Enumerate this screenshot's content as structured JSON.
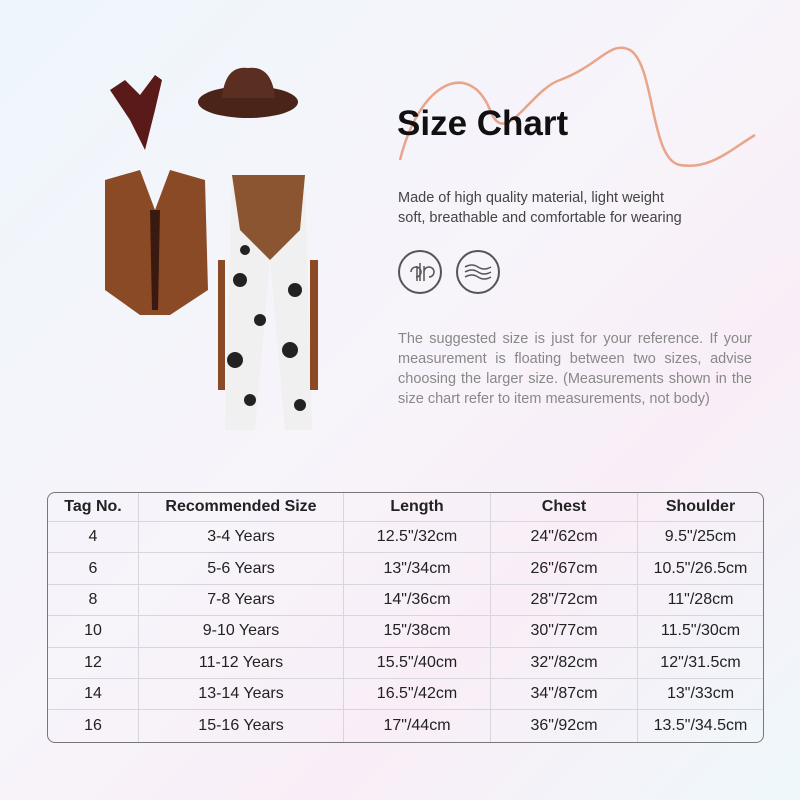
{
  "title": "Size Chart",
  "description": [
    "Made of high quality material, light weight",
    "soft, breathable and comfortable for wearing"
  ],
  "feature_icons": [
    "breathable-icon",
    "soft-wave-icon"
  ],
  "note": "The suggested size is just for your reference. If your measurement is floating between two sizes, advise choosing the larger size. (Measurements shown in the size chart refer to item measurements, not body)",
  "accent_color": "#e8a58a",
  "table": {
    "headers": [
      "Tag No.",
      "Recommended Size",
      "Length",
      "Chest",
      "Shoulder"
    ],
    "rows": [
      [
        "4",
        "3-4 Years",
        "12.5\"/32cm",
        "24\"/62cm",
        "9.5\"/25cm"
      ],
      [
        "6",
        "5-6 Years",
        "13\"/34cm",
        "26\"/67cm",
        "10.5\"/26.5cm"
      ],
      [
        "8",
        "7-8 Years",
        "14\"/36cm",
        "28\"/72cm",
        "11\"/28cm"
      ],
      [
        "10",
        "9-10 Years",
        "15\"/38cm",
        "30\"/77cm",
        "11.5\"/30cm"
      ],
      [
        "12",
        "11-12 Years",
        "15.5\"/40cm",
        "32\"/82cm",
        "12\"/31.5cm"
      ],
      [
        "14",
        "13-14 Years",
        "16.5\"/42cm",
        "34\"/87cm",
        "13\"/33cm"
      ],
      [
        "16",
        "15-16 Years",
        "17\"/44cm",
        "36\"/92cm",
        "13.5\"/34.5cm"
      ]
    ]
  }
}
